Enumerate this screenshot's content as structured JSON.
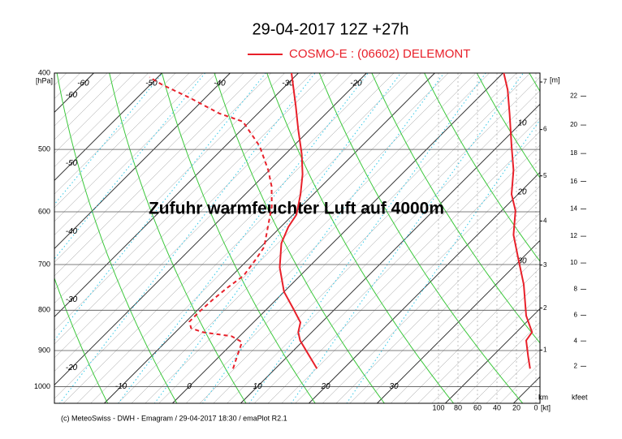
{
  "chart_data": {
    "type": "emagram",
    "title": "29-04-2017  12Z +27h",
    "model": "COSMO-E : (06602)  DELEMONT",
    "model_color": "#e8202a",
    "annotation": "Zufuhr warmfeuchter Luft auf 4000m",
    "footer": "(c) MeteoSwiss - DWH - Emagram / 29-04-2017  18:30 / emaPlot R2.1",
    "y_unit": "[hPa]",
    "height_unit": "[m]",
    "km_label": "km",
    "kfeet_label": "kfeet",
    "speed_unit": "[kt]",
    "log_y": true,
    "ylim": [
      400,
      1050
    ],
    "yticks": [
      400,
      500,
      600,
      700,
      800,
      900,
      1000
    ],
    "temperature_ticks_bottom": [
      -10,
      0,
      10,
      20,
      30
    ],
    "temperature_ticks_top": [
      -60,
      -50,
      -40,
      -30,
      -20
    ],
    "temperature_ticks_left": [
      -60,
      -50,
      -40,
      -30,
      -20
    ],
    "km_ticks": [
      1,
      2,
      3,
      4,
      5,
      6,
      7
    ],
    "kfeet_ticks": [
      2,
      4,
      6,
      8,
      10,
      12,
      14,
      16,
      18,
      20,
      22
    ],
    "speed_lim": [
      0,
      100
    ],
    "speed_ticks": [
      100,
      80,
      60,
      40,
      20,
      0
    ],
    "isotach_labels": [
      10,
      20,
      30
    ],
    "series": [
      {
        "color": "#e8202a",
        "dash": false,
        "pressure": [
          949,
          874,
          853,
          829,
          794,
          758,
          706,
          658,
          627,
          605,
          570,
          538,
          507,
          472,
          440,
          400
        ],
        "values": [
          16.1,
          9.5,
          8.0,
          6.9,
          3.6,
          0,
          -4.2,
          -7.5,
          -8.9,
          -9.5,
          -11.9,
          -14.5,
          -17.6,
          -21.7,
          -25.6,
          -31.0
        ]
      },
      {
        "color": "#e8202a",
        "dash": true,
        "pressure": [
          949,
          927,
          878,
          863,
          853,
          843,
          827,
          804,
          776,
          749,
          723,
          689,
          665,
          627,
          591,
          557,
          531,
          495,
          461,
          450,
          430,
          414,
          405
        ],
        "values": [
          3.8,
          3.0,
          1.2,
          -1.2,
          -6.0,
          -8.3,
          -9.5,
          -9.5,
          -9.3,
          -8.9,
          -8.3,
          -8.9,
          -9.5,
          -11.9,
          -14.3,
          -17.3,
          -20.2,
          -25.0,
          -31.0,
          -35.7,
          -42.3,
          -48.2,
          -51.2
        ]
      }
    ],
    "wind_speed": {
      "color": "#e8202a",
      "pressure": [
        400,
        420,
        451,
        495,
        531,
        570,
        598,
        642,
        689,
        742,
        813,
        853,
        874,
        915,
        949
      ],
      "values": [
        33,
        29,
        27,
        25,
        23,
        25,
        21,
        23,
        18,
        12.5,
        10,
        4,
        10,
        8,
        6
      ]
    }
  }
}
